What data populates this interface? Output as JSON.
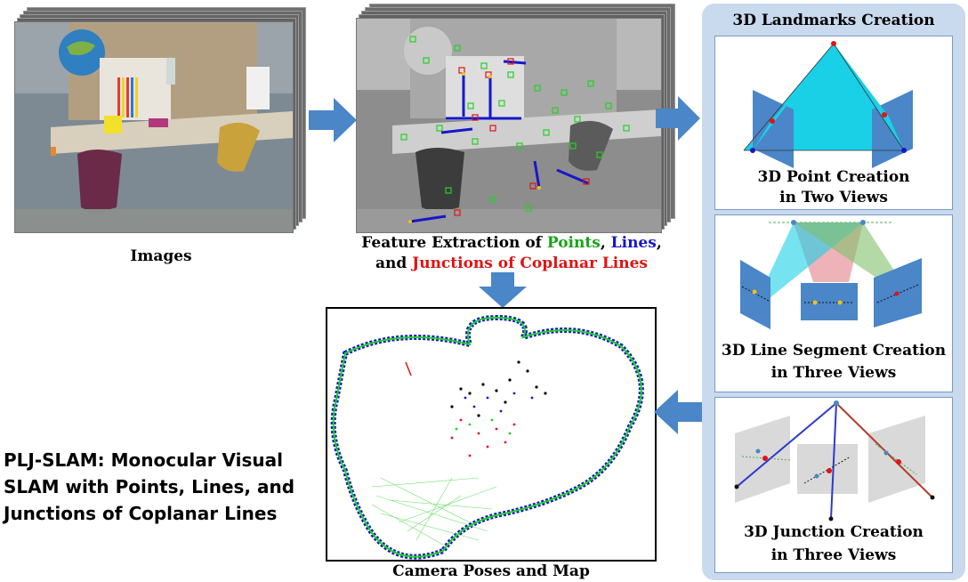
{
  "images_caption": "Images",
  "features_caption": {
    "line1_prefix": "Feature Extraction of ",
    "points": "Points",
    "comma1": ", ",
    "lines": "Lines",
    "comma2": ",",
    "line2_prefix": "and ",
    "junctions": "Junctions of Coplanar Lines"
  },
  "map_caption": "Camera Poses and Map",
  "panel_title": "3D Landmarks Creation",
  "point_creation": {
    "line1": "3D Point Creation",
    "line2": "in Two Views"
  },
  "line_creation": {
    "line1": "3D Line Segment Creation",
    "line2": "in Three Views"
  },
  "junction_creation": {
    "line1": "3D Junction Creation",
    "line2": "in Three Views"
  },
  "paper_title": {
    "line1": "PLJ-SLAM: Monocular Visual",
    "line2": "SLAM with Points, Lines, and",
    "line3": "Junctions of Coplanar Lines"
  },
  "colors": {
    "points": "#1aa31a",
    "lines": "#1717c9",
    "junctions": "#e01414",
    "arrow": "#4a86c8",
    "panel": "#c9d9ee",
    "cyan": "#1ad0e6"
  }
}
